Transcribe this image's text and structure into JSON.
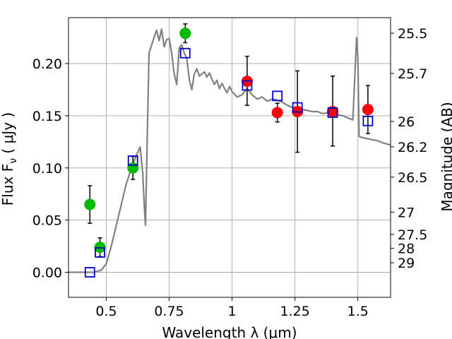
{
  "chart_data": {
    "type": "scatter",
    "xlabel": "Wavelength  λ (μm)",
    "ylabel": "Flux  F_ν  ( μJy )",
    "y2label": "Magnitude (AB)",
    "xlim": [
      0.35,
      1.63
    ],
    "ylim": [
      -0.024,
      0.244
    ],
    "grid": true,
    "xticks": [
      0.5,
      0.75,
      1.0,
      1.25,
      1.5
    ],
    "xtick_labels": [
      "0.5",
      "0.75",
      "1",
      "1.25",
      "1.5"
    ],
    "yticks": [
      0.0,
      0.05,
      0.1,
      0.15,
      0.2
    ],
    "ytick_labels": [
      "0.00",
      "0.05",
      "0.10",
      "0.15",
      "0.20"
    ],
    "y2ticks": [
      {
        "mag": 25.5,
        "label": "25.5"
      },
      {
        "mag": 25.7,
        "label": "25.7"
      },
      {
        "mag": 26.0,
        "label": "26"
      },
      {
        "mag": 26.2,
        "label": "26.2"
      },
      {
        "mag": 26.5,
        "label": "26.5"
      },
      {
        "mag": 27.0,
        "label": "27"
      },
      {
        "mag": 27.5,
        "label": "27.5"
      },
      {
        "mag": 28.0,
        "label": "28"
      },
      {
        "mag": 29.0,
        "label": "29"
      }
    ],
    "colors": {
      "model": "#808080",
      "optical": "#00bb00",
      "nir": "#ff0000",
      "model_flux": "#0000cc",
      "errorbar": "#000000",
      "grid": "#b0b0b0"
    },
    "observed_optical": [
      {
        "x": 0.435,
        "y": 0.065,
        "err_lo": 0.018,
        "err_hi": 0.018
      },
      {
        "x": 0.475,
        "y": 0.024,
        "err_lo": 0.009,
        "err_hi": 0.009
      },
      {
        "x": 0.606,
        "y": 0.1,
        "err_lo": 0.011,
        "err_hi": 0.011
      },
      {
        "x": 0.814,
        "y": 0.229,
        "err_lo": 0.009,
        "err_hi": 0.009
      }
    ],
    "observed_nir": [
      {
        "x": 1.06,
        "y": 0.183,
        "err_lo": 0.023,
        "err_hi": 0.024
      },
      {
        "x": 1.18,
        "y": 0.153,
        "err_lo": 0.009,
        "err_hi": 0.009
      },
      {
        "x": 1.26,
        "y": 0.154,
        "err_lo": 0.039,
        "err_hi": 0.039
      },
      {
        "x": 1.4,
        "y": 0.154,
        "err_lo": 0.033,
        "err_hi": 0.034
      },
      {
        "x": 1.54,
        "y": 0.156,
        "err_lo": 0.023,
        "err_hi": 0.023
      }
    ],
    "model_fluxes": [
      {
        "x": 0.435,
        "y": 0.0
      },
      {
        "x": 0.475,
        "y": 0.019
      },
      {
        "x": 0.606,
        "y": 0.107
      },
      {
        "x": 0.814,
        "y": 0.21
      },
      {
        "x": 1.06,
        "y": 0.179
      },
      {
        "x": 1.18,
        "y": 0.169
      },
      {
        "x": 1.26,
        "y": 0.158
      },
      {
        "x": 1.4,
        "y": 0.153
      },
      {
        "x": 1.54,
        "y": 0.145
      }
    ],
    "model_spectrum": [
      [
        0.35,
        0.0
      ],
      [
        0.45,
        0.0
      ],
      [
        0.48,
        0.002
      ],
      [
        0.5,
        0.008
      ],
      [
        0.52,
        0.025
      ],
      [
        0.54,
        0.045
      ],
      [
        0.56,
        0.065
      ],
      [
        0.58,
        0.085
      ],
      [
        0.6,
        0.1
      ],
      [
        0.62,
        0.112
      ],
      [
        0.635,
        0.12
      ],
      [
        0.645,
        0.095
      ],
      [
        0.652,
        0.06
      ],
      [
        0.656,
        0.045
      ],
      [
        0.662,
        0.12
      ],
      [
        0.67,
        0.21
      ],
      [
        0.69,
        0.225
      ],
      [
        0.7,
        0.232
      ],
      [
        0.71,
        0.222
      ],
      [
        0.72,
        0.233
      ],
      [
        0.73,
        0.216
      ],
      [
        0.74,
        0.223
      ],
      [
        0.75,
        0.224
      ],
      [
        0.76,
        0.21
      ],
      [
        0.77,
        0.19
      ],
      [
        0.78,
        0.18
      ],
      [
        0.79,
        0.215
      ],
      [
        0.8,
        0.218
      ],
      [
        0.81,
        0.21
      ],
      [
        0.82,
        0.205
      ],
      [
        0.83,
        0.185
      ],
      [
        0.84,
        0.175
      ],
      [
        0.85,
        0.19
      ],
      [
        0.86,
        0.195
      ],
      [
        0.87,
        0.188
      ],
      [
        0.88,
        0.19
      ],
      [
        0.89,
        0.192
      ],
      [
        0.9,
        0.187
      ],
      [
        0.91,
        0.191
      ],
      [
        0.92,
        0.185
      ],
      [
        0.93,
        0.18
      ],
      [
        0.94,
        0.184
      ],
      [
        0.95,
        0.176
      ],
      [
        0.96,
        0.181
      ],
      [
        0.97,
        0.176
      ],
      [
        0.98,
        0.172
      ],
      [
        0.99,
        0.178
      ],
      [
        1.0,
        0.173
      ],
      [
        1.02,
        0.168
      ],
      [
        1.04,
        0.17
      ],
      [
        1.06,
        0.176
      ],
      [
        1.08,
        0.17
      ],
      [
        1.1,
        0.166
      ],
      [
        1.12,
        0.168
      ],
      [
        1.14,
        0.164
      ],
      [
        1.16,
        0.166
      ],
      [
        1.18,
        0.165
      ],
      [
        1.2,
        0.163
      ],
      [
        1.22,
        0.16
      ],
      [
        1.24,
        0.158
      ],
      [
        1.26,
        0.157
      ],
      [
        1.28,
        0.156
      ],
      [
        1.3,
        0.155
      ],
      [
        1.32,
        0.154
      ],
      [
        1.34,
        0.154
      ],
      [
        1.36,
        0.152
      ],
      [
        1.38,
        0.153
      ],
      [
        1.4,
        0.152
      ],
      [
        1.42,
        0.151
      ],
      [
        1.44,
        0.15
      ],
      [
        1.46,
        0.148
      ],
      [
        1.48,
        0.146
      ],
      [
        1.495,
        0.225
      ],
      [
        1.5,
        0.205
      ],
      [
        1.505,
        0.13
      ],
      [
        1.52,
        0.129
      ],
      [
        1.54,
        0.128
      ],
      [
        1.56,
        0.127
      ],
      [
        1.58,
        0.126
      ],
      [
        1.6,
        0.124
      ],
      [
        1.63,
        0.122
      ]
    ]
  }
}
